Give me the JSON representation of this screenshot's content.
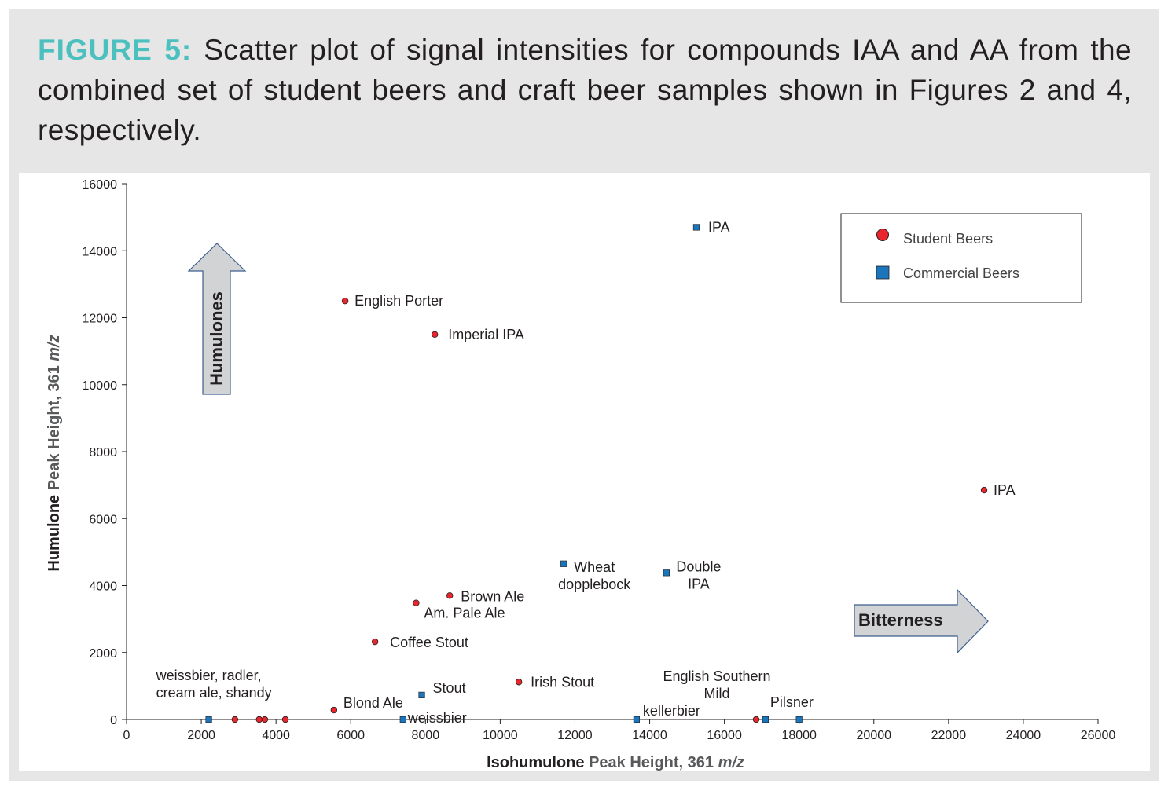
{
  "caption": {
    "lead": "FIGURE 5:",
    "text": "Scatter plot of signal intensities for compounds IAA and AA from the combined set of student beers and craft beer samples shown in Figures 2 and 4, respectively."
  },
  "chart_data": {
    "type": "scatter",
    "title": "",
    "xlabel": {
      "bold": "Isohumulone",
      "plain": "Peak Height, 361",
      "italic": "m/z"
    },
    "ylabel": {
      "bold": "Humulone",
      "plain": "Peak Height, 361",
      "italic": "m/z"
    },
    "xlim": [
      0,
      26000
    ],
    "ylim": [
      0,
      16000
    ],
    "xticks": [
      0,
      2000,
      4000,
      6000,
      8000,
      10000,
      12000,
      14000,
      16000,
      18000,
      20000,
      22000,
      24000,
      26000
    ],
    "yticks": [
      0,
      2000,
      4000,
      6000,
      8000,
      10000,
      12000,
      14000,
      16000
    ],
    "grid": false,
    "legend_position": "top-right",
    "series": [
      {
        "name": "Student Beers",
        "marker": "circle",
        "color": "#e8262b",
        "points": [
          {
            "x": 2900,
            "y": 0
          },
          {
            "x": 3550,
            "y": 0
          },
          {
            "x": 3700,
            "y": 0
          },
          {
            "x": 4250,
            "y": 0
          },
          {
            "x": 5550,
            "y": 280
          },
          {
            "x": 5850,
            "y": 12500
          },
          {
            "x": 8250,
            "y": 11500
          },
          {
            "x": 6650,
            "y": 2320
          },
          {
            "x": 7750,
            "y": 3480
          },
          {
            "x": 8650,
            "y": 3700
          },
          {
            "x": 10500,
            "y": 1120
          },
          {
            "x": 16850,
            "y": 0
          },
          {
            "x": 22950,
            "y": 6850
          }
        ]
      },
      {
        "name": "Commercial Beers",
        "marker": "square",
        "color": "#1b75bb",
        "points": [
          {
            "x": 2200,
            "y": 0
          },
          {
            "x": 7400,
            "y": 0
          },
          {
            "x": 7900,
            "y": 730
          },
          {
            "x": 11700,
            "y": 4650
          },
          {
            "x": 13650,
            "y": 0
          },
          {
            "x": 14450,
            "y": 4380
          },
          {
            "x": 15250,
            "y": 14700
          },
          {
            "x": 17100,
            "y": 0
          },
          {
            "x": 18000,
            "y": 0
          }
        ]
      }
    ],
    "annotations": [
      {
        "lines": [
          "IPA"
        ],
        "x": 15250,
        "y": 14700,
        "anchor": "start",
        "dx": 15,
        "dy": 0
      },
      {
        "lines": [
          "English Porter"
        ],
        "x": 5850,
        "y": 12500,
        "anchor": "start",
        "dx": 12,
        "dy": 0
      },
      {
        "lines": [
          "Imperial IPA"
        ],
        "x": 8250,
        "y": 11500,
        "anchor": "start",
        "dx": 17,
        "dy": 0
      },
      {
        "lines": [
          "IPA"
        ],
        "x": 22950,
        "y": 6850,
        "anchor": "start",
        "dx": 12,
        "dy": 0
      },
      {
        "lines": [
          "Wheat",
          "dopplebock"
        ],
        "x": 11700,
        "y": 4650,
        "anchor": "middle",
        "dx": 39,
        "dy": 4
      },
      {
        "lines": [
          "Double",
          "IPA"
        ],
        "x": 14450,
        "y": 4380,
        "anchor": "middle",
        "dx": 41,
        "dy": -8
      },
      {
        "lines": [
          "Brown Ale"
        ],
        "x": 8650,
        "y": 3700,
        "anchor": "start",
        "dx": 14,
        "dy": 1
      },
      {
        "lines": [
          "Am. Pale Ale"
        ],
        "x": 7750,
        "y": 3480,
        "anchor": "start",
        "dx": 10,
        "dy": 13
      },
      {
        "lines": [
          "Coffee Stout"
        ],
        "x": 6650,
        "y": 2320,
        "anchor": "start",
        "dx": 19,
        "dy": 1
      },
      {
        "lines": [
          "weissbier, radler,",
          "cream ale, shandy"
        ],
        "x": 2200,
        "y": 0,
        "anchor": "start",
        "dx": -67,
        "dy": -56
      },
      {
        "lines": [
          "Stout"
        ],
        "x": 7900,
        "y": 730,
        "anchor": "start",
        "dx": 14,
        "dy": -9
      },
      {
        "lines": [
          "Irish Stout"
        ],
        "x": 10500,
        "y": 1120,
        "anchor": "start",
        "dx": 15,
        "dy": 0
      },
      {
        "lines": [
          "English Southern",
          "Mild"
        ],
        "x": 16850,
        "y": 0,
        "anchor": "middle",
        "dx": -50,
        "dy": -55
      },
      {
        "lines": [
          "Pilsner"
        ],
        "x": 17100,
        "y": 0,
        "anchor": "start",
        "dx": 6,
        "dy": -22
      },
      {
        "lines": [
          "Blond Ale"
        ],
        "x": 5550,
        "y": 280,
        "anchor": "start",
        "dx": 12,
        "dy": -9
      },
      {
        "lines": [
          "weissbier"
        ],
        "x": 7400,
        "y": 0,
        "anchor": "start",
        "dx": 6,
        "dy": -2
      },
      {
        "lines": [
          "kellerbier"
        ],
        "x": 13650,
        "y": 0,
        "anchor": "start",
        "dx": 8,
        "dy": -11
      }
    ],
    "arrows": {
      "humulones": "Humulones",
      "bitterness": "Bitterness"
    }
  }
}
